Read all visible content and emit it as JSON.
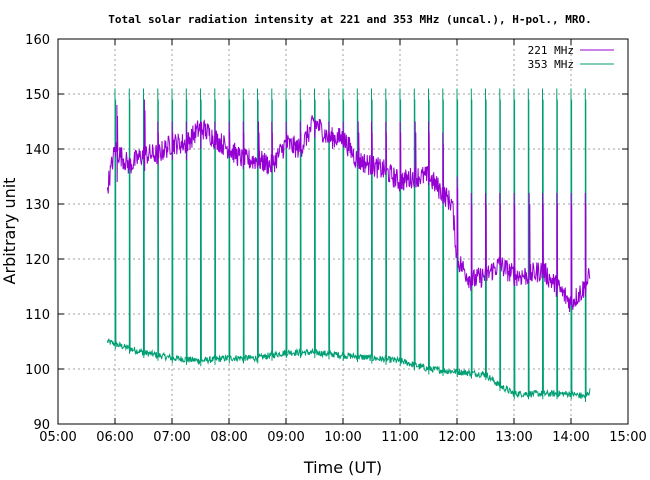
{
  "chart_data": {
    "type": "line",
    "title": "Total solar radiation intensity at 221 and 353 MHz (uncal.), H-pol., MRO.",
    "xlabel": "Time (UT)",
    "ylabel": "Arbitrary unit",
    "xlim": [
      "05:00",
      "15:00"
    ],
    "ylim": [
      90,
      160
    ],
    "xticks": [
      "05:00",
      "06:00",
      "07:00",
      "08:00",
      "09:00",
      "10:00",
      "11:00",
      "12:00",
      "13:00",
      "14:00",
      "15:00"
    ],
    "yticks": [
      90,
      100,
      110,
      120,
      130,
      140,
      150,
      160
    ],
    "grid": true,
    "legend_position": "top-right",
    "series": [
      {
        "name": "221 MHz",
        "color": "#9400d3",
        "x": [
          "05:52",
          "06:00",
          "06:15",
          "06:30",
          "06:45",
          "07:00",
          "07:15",
          "07:30",
          "07:45",
          "08:00",
          "08:15",
          "08:30",
          "08:45",
          "09:00",
          "09:15",
          "09:30",
          "09:45",
          "10:00",
          "10:15",
          "10:30",
          "10:45",
          "11:00",
          "11:15",
          "11:30",
          "11:45",
          "11:55",
          "12:00",
          "12:15",
          "12:30",
          "12:45",
          "13:00",
          "13:15",
          "13:30",
          "13:45",
          "14:00",
          "14:15",
          "14:20"
        ],
        "values": [
          133,
          140,
          137,
          139,
          139,
          141,
          141,
          144,
          142,
          140,
          138,
          138,
          137,
          141,
          140,
          145,
          142,
          142,
          138,
          137,
          136,
          134,
          135,
          135,
          132,
          130,
          120,
          116,
          117,
          119,
          117,
          117,
          118,
          115,
          112,
          115,
          117
        ],
        "spike_times": [
          "06:02",
          "06:31",
          "06:45",
          "07:00",
          "07:15",
          "07:30",
          "07:45",
          "08:00",
          "08:15",
          "08:31",
          "08:45",
          "09:00",
          "09:15",
          "09:30",
          "09:45",
          "10:00",
          "10:16",
          "10:30",
          "10:45",
          "11:00",
          "11:16",
          "11:30",
          "11:45",
          "12:00",
          "12:15",
          "12:30",
          "12:45",
          "13:00",
          "13:16",
          "13:30",
          "13:45",
          "14:00",
          "14:15"
        ],
        "spike_peak": [
          148,
          149,
          145,
          145,
          145,
          145,
          145,
          145,
          145,
          145,
          145,
          145,
          145,
          145,
          145,
          145,
          145,
          145,
          145,
          145,
          145,
          145,
          143,
          135,
          132,
          132,
          132,
          132,
          132,
          132,
          132,
          132,
          132
        ],
        "spike_low": [
          134,
          136,
          137,
          138,
          138,
          140,
          140,
          139,
          138,
          137,
          137,
          140,
          140,
          142,
          142,
          141,
          139,
          138,
          136,
          135,
          135,
          135,
          130,
          123,
          123,
          123,
          123,
          123,
          123,
          123,
          123,
          123,
          123
        ]
      },
      {
        "name": "353 MHz",
        "color": "#009e73",
        "x": [
          "05:52",
          "06:10",
          "06:30",
          "07:00",
          "07:30",
          "08:00",
          "08:30",
          "09:00",
          "09:30",
          "10:00",
          "10:30",
          "11:00",
          "11:30",
          "12:00",
          "12:30",
          "12:45",
          "13:00",
          "13:30",
          "14:00",
          "14:15",
          "14:20"
        ],
        "values": [
          105,
          104,
          103,
          102,
          101.5,
          102,
          102,
          103,
          103,
          102.5,
          102,
          101.5,
          100,
          99.5,
          99,
          97,
          95.5,
          95.5,
          95.5,
          95,
          96
        ],
        "spike_times": [
          "06:00",
          "06:15",
          "06:30",
          "06:45",
          "07:00",
          "07:15",
          "07:30",
          "07:45",
          "08:00",
          "08:15",
          "08:30",
          "08:45",
          "09:00",
          "09:15",
          "09:30",
          "09:45",
          "10:00",
          "10:15",
          "10:30",
          "10:45",
          "11:00",
          "11:15",
          "11:30",
          "11:45",
          "12:00",
          "12:15",
          "12:30",
          "12:45",
          "13:00",
          "13:15",
          "13:30",
          "13:45",
          "14:00",
          "14:15"
        ],
        "spike_peak": 151
      }
    ]
  }
}
